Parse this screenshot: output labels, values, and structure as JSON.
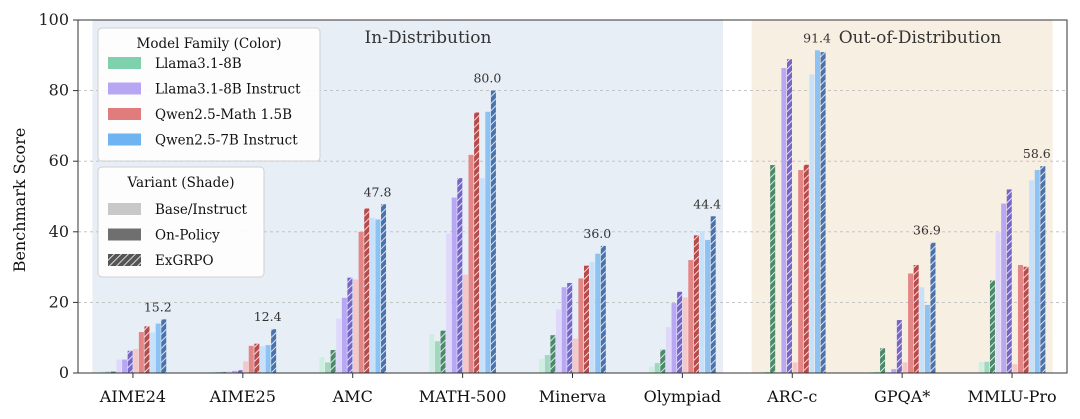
{
  "chart_data": {
    "type": "bar",
    "title": "",
    "xlabel": "",
    "ylabel": "Benchmark Score",
    "ylim": [
      0,
      100
    ],
    "yticks": [
      0,
      20,
      40,
      60,
      80,
      100
    ],
    "grid": "horizontal dashed",
    "categories": [
      "AIME24",
      "AIME25",
      "AMC",
      "MATH-500",
      "Minerva",
      "Olympiad",
      "ARC-c",
      "GPQA*",
      "MMLU-Pro"
    ],
    "regions": [
      {
        "label": "In-Distribution",
        "from_category": 0,
        "to_category": 5,
        "color": "#e8eef6"
      },
      {
        "label": "Out-of-Distribution",
        "from_category": 6,
        "to_category": 8,
        "color": "#f8efe3"
      }
    ],
    "models": [
      {
        "name": "Llama3.1-8B",
        "color": "#7fd1ae",
        "variant_colors": [
          "#cdeee0",
          "#9fd9bd",
          "#4a8a6a"
        ]
      },
      {
        "name": "Llama3.1-8B Instruct",
        "color": "#b7a6f2",
        "variant_colors": [
          "#e0d8fb",
          "#b8a8f3",
          "#7565c6"
        ]
      },
      {
        "name": "Qwen2.5-Math 1.5B",
        "color": "#e17c7c",
        "variant_colors": [
          "#f4c8c8",
          "#e48686",
          "#b84a4a"
        ]
      },
      {
        "name": "Qwen2.5-7B Instruct",
        "color": "#6fb4f2",
        "variant_colors": [
          "#c7e1fa",
          "#8cc3f2",
          "#4a73ae"
        ]
      }
    ],
    "variants": [
      "Base/Instruct",
      "On-Policy",
      "ExGRPO"
    ],
    "values": {
      "AIME24": [
        [
          0.4,
          0.4,
          0.4
        ],
        [
          3.8,
          3.8,
          6.3
        ],
        [
          6.8,
          11.6,
          13.2
        ],
        [
          11.5,
          14.0,
          15.2
        ]
      ],
      "AIME25": [
        [
          0.3,
          0.3,
          0.3
        ],
        [
          0.5,
          0.6,
          0.8
        ],
        [
          3.3,
          7.7,
          8.3
        ],
        [
          7.6,
          7.9,
          12.4
        ]
      ],
      "AMC": [
        [
          4.5,
          3.0,
          6.5
        ],
        [
          15.4,
          21.3,
          27.0
        ],
        [
          26.5,
          40.0,
          46.6
        ],
        [
          44.0,
          43.5,
          47.8
        ]
      ],
      "MATH-500": [
        [
          11.0,
          9.0,
          12.0
        ],
        [
          39.5,
          49.7,
          55.2
        ],
        [
          27.9,
          61.8,
          73.8
        ],
        [
          55.2,
          74.0,
          80.0
        ]
      ],
      "Minerva": [
        [
          4.0,
          5.1,
          10.7
        ],
        [
          18.0,
          24.3,
          25.5
        ],
        [
          9.7,
          26.8,
          30.4
        ],
        [
          31.5,
          33.8,
          36.0
        ]
      ],
      "Olympiad": [
        [
          1.8,
          2.8,
          6.6
        ],
        [
          13.0,
          19.8,
          23.0
        ],
        [
          21.4,
          32.0,
          39.0
        ],
        [
          40.2,
          37.7,
          44.4
        ]
      ],
      "ARC-c": [
        [
          0.3,
          0.3,
          58.9
        ],
        [
          0.3,
          86.4,
          88.9
        ],
        [
          3.0,
          57.5,
          59.0
        ],
        [
          84.6,
          91.4,
          90.9
        ]
      ],
      "GPQA*": [
        [
          0.3,
          0.3,
          7.0
        ],
        [
          0.3,
          1.1,
          15.0
        ],
        [
          3.0,
          28.2,
          30.6
        ],
        [
          24.3,
          19.3,
          36.9
        ]
      ],
      "MMLU-Pro": [
        [
          3.1,
          3.2,
          26.2
        ],
        [
          40.0,
          48.0,
          52.0
        ],
        [
          2.5,
          30.6,
          30.1
        ],
        [
          54.6,
          57.5,
          58.6
        ]
      ]
    },
    "annotations": [
      {
        "category": "AIME24",
        "text": "15.2",
        "value": 15.2
      },
      {
        "category": "AIME25",
        "text": "12.4",
        "value": 12.4
      },
      {
        "category": "AMC",
        "text": "47.8",
        "value": 47.8
      },
      {
        "category": "MATH-500",
        "text": "80.0",
        "value": 80.0
      },
      {
        "category": "Minerva",
        "text": "36.0",
        "value": 36.0
      },
      {
        "category": "Olympiad",
        "text": "44.4",
        "value": 44.4
      },
      {
        "category": "ARC-c",
        "text": "91.4",
        "value": 91.4
      },
      {
        "category": "GPQA*",
        "text": "36.9",
        "value": 36.9
      },
      {
        "category": "MMLU-Pro",
        "text": "58.6",
        "value": 58.6
      }
    ],
    "legend": {
      "placement": "top-left",
      "model_title": "Model Family (Color)",
      "variant_title": "Variant (Shade)",
      "variant_swatches": [
        "#c8c8c8",
        "#6f6f6f",
        "#555555"
      ]
    }
  }
}
